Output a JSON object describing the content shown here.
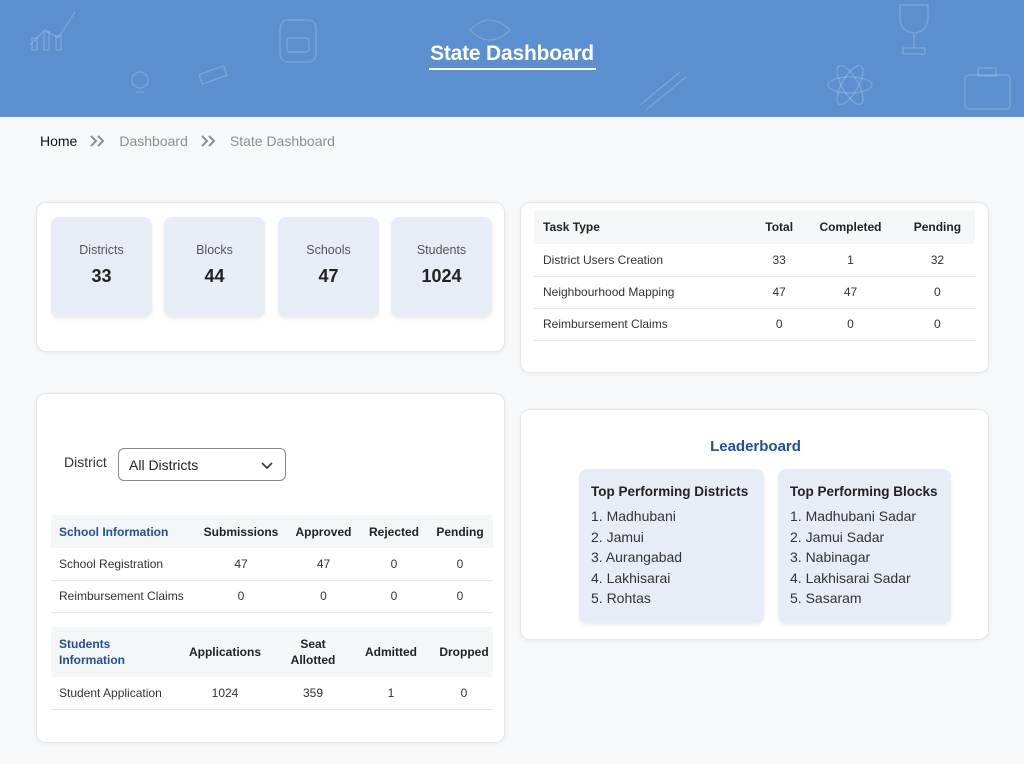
{
  "header": {
    "title": "State Dashboard"
  },
  "breadcrumb": {
    "items": [
      "Home",
      "Dashboard",
      "State Dashboard"
    ]
  },
  "stats": [
    {
      "label": "Districts",
      "value": "33"
    },
    {
      "label": "Blocks",
      "value": "44"
    },
    {
      "label": "Schools",
      "value": "47"
    },
    {
      "label": "Students",
      "value": "1024"
    }
  ],
  "task_table": {
    "headers": [
      "Task Type",
      "Total",
      "Completed",
      "Pending"
    ],
    "rows": [
      [
        "District Users Creation",
        "33",
        "1",
        "32"
      ],
      [
        "Neighbourhood Mapping",
        "47",
        "47",
        "0"
      ],
      [
        "Reimbursement Claims",
        "0",
        "0",
        "0"
      ]
    ]
  },
  "district_filter": {
    "label": "District",
    "selected": "All Districts"
  },
  "school_table": {
    "headers": [
      "School Information",
      "Submissions",
      "Approved",
      "Rejected",
      "Pending"
    ],
    "rows": [
      [
        "School Registration",
        "47",
        "47",
        "0",
        "0"
      ],
      [
        "Reimbursement Claims",
        "0",
        "0",
        "0",
        "0"
      ]
    ]
  },
  "student_table": {
    "headers": [
      "Students Information",
      "Applications",
      "Seat Allotted",
      "Admitted",
      "Dropped"
    ],
    "rows": [
      [
        "Student Application",
        "1024",
        "359",
        "1",
        "0"
      ]
    ]
  },
  "leaderboard": {
    "title": "Leaderboard",
    "districts": {
      "heading": "Top Performing Districts",
      "items": [
        "1. Madhubani",
        "2. Jamui",
        "3. Aurangabad",
        "4. Lakhisarai",
        "5. Rohtas"
      ]
    },
    "blocks": {
      "heading": "Top Performing Blocks",
      "items": [
        "1. Madhubani Sadar",
        "2. Jamui Sadar",
        "3. Nabinagar",
        "4. Lakhisarai Sadar",
        "5. Sasaram"
      ]
    }
  },
  "icons": {
    "breadcrumb_separator": "double-chevron-right-icon",
    "dropdown": "chevron-down-icon",
    "header_decoration": [
      "chart-icon",
      "lightbulb-icon",
      "backpack-icon",
      "trophy-icon",
      "atom-icon",
      "briefcase-icon",
      "pencil-icon"
    ]
  },
  "colors": {
    "header_bg": "#5b8fcf",
    "accent": "#1f4e9c",
    "tile_bg": "#e7edf6"
  }
}
